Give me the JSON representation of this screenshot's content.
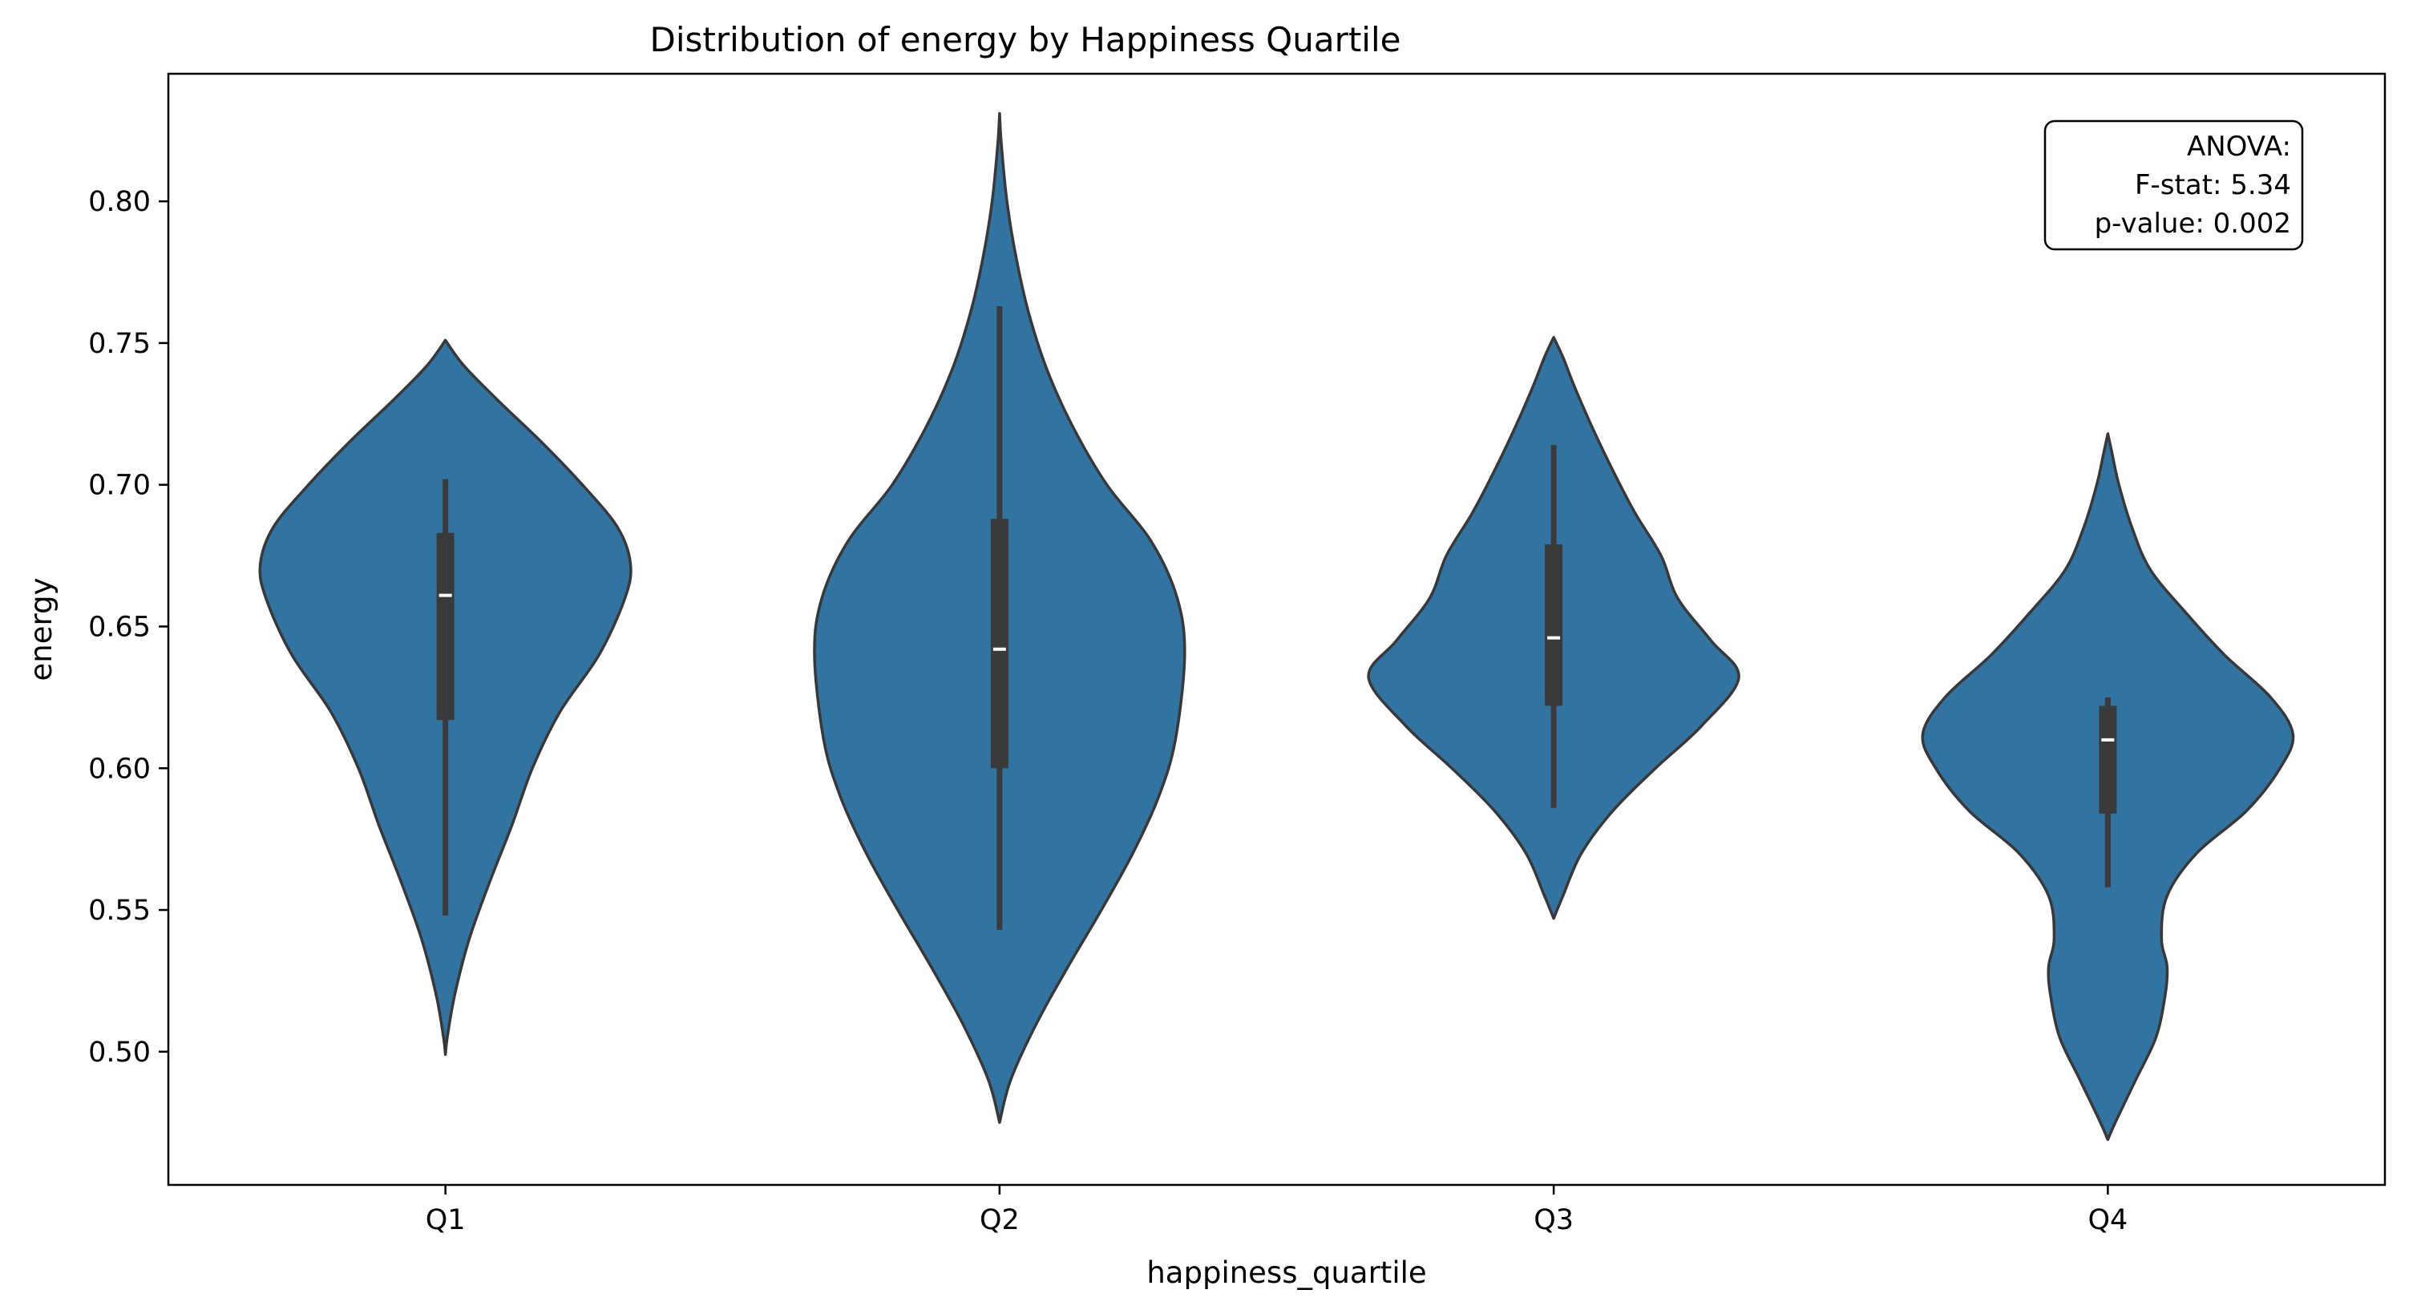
{
  "chart_data": {
    "type": "violin",
    "title": "Distribution of energy by Happiness Quartile",
    "xlabel": "happiness_quartile",
    "ylabel": "energy",
    "categories": [
      "Q1",
      "Q2",
      "Q3",
      "Q4"
    ],
    "ylim": [
      0.453,
      0.845
    ],
    "yticks": [
      0.5,
      0.55,
      0.6,
      0.65,
      0.7,
      0.75,
      0.8
    ],
    "ytick_labels": [
      "0.50",
      "0.55",
      "0.60",
      "0.65",
      "0.70",
      "0.75",
      "0.80"
    ],
    "grid": false,
    "colors": {
      "violin_fill": "#3274a1",
      "violin_edge": "#383838",
      "box": "#3a3a3a",
      "median": "#ffffff"
    },
    "violins": [
      {
        "category": "Q1",
        "min": 0.499,
        "max": 0.751,
        "box": {
          "q1": 0.617,
          "median": 0.661,
          "q3": 0.683,
          "whisker_low": 0.548,
          "whisker_high": 0.702
        },
        "density": [
          [
            0.499,
            0.0
          ],
          [
            0.505,
            0.01
          ],
          [
            0.52,
            0.05
          ],
          [
            0.54,
            0.13
          ],
          [
            0.56,
            0.24
          ],
          [
            0.58,
            0.36
          ],
          [
            0.6,
            0.47
          ],
          [
            0.62,
            0.62
          ],
          [
            0.64,
            0.83
          ],
          [
            0.66,
            0.97
          ],
          [
            0.672,
            1.0
          ],
          [
            0.685,
            0.93
          ],
          [
            0.7,
            0.74
          ],
          [
            0.715,
            0.52
          ],
          [
            0.73,
            0.28
          ],
          [
            0.742,
            0.1
          ],
          [
            0.751,
            0.0
          ]
        ]
      },
      {
        "category": "Q2",
        "min": 0.475,
        "max": 0.831,
        "box": {
          "q1": 0.6,
          "median": 0.642,
          "q3": 0.688,
          "whisker_low": 0.543,
          "whisker_high": 0.763
        },
        "density": [
          [
            0.475,
            0.0
          ],
          [
            0.49,
            0.06
          ],
          [
            0.51,
            0.2
          ],
          [
            0.53,
            0.37
          ],
          [
            0.55,
            0.55
          ],
          [
            0.57,
            0.72
          ],
          [
            0.59,
            0.86
          ],
          [
            0.61,
            0.95
          ],
          [
            0.64,
            1.0
          ],
          [
            0.66,
            0.96
          ],
          [
            0.68,
            0.82
          ],
          [
            0.7,
            0.58
          ],
          [
            0.72,
            0.4
          ],
          [
            0.74,
            0.26
          ],
          [
            0.76,
            0.16
          ],
          [
            0.78,
            0.09
          ],
          [
            0.8,
            0.04
          ],
          [
            0.82,
            0.01
          ],
          [
            0.831,
            0.0
          ]
        ]
      },
      {
        "category": "Q3",
        "min": 0.547,
        "max": 0.752,
        "box": {
          "q1": 0.622,
          "median": 0.646,
          "q3": 0.679,
          "whisker_low": 0.586,
          "whisker_high": 0.714
        },
        "density": [
          [
            0.547,
            0.0
          ],
          [
            0.555,
            0.05
          ],
          [
            0.57,
            0.15
          ],
          [
            0.585,
            0.32
          ],
          [
            0.6,
            0.55
          ],
          [
            0.615,
            0.8
          ],
          [
            0.632,
            1.0
          ],
          [
            0.645,
            0.85
          ],
          [
            0.66,
            0.67
          ],
          [
            0.675,
            0.58
          ],
          [
            0.69,
            0.44
          ],
          [
            0.705,
            0.32
          ],
          [
            0.72,
            0.21
          ],
          [
            0.735,
            0.11
          ],
          [
            0.745,
            0.05
          ],
          [
            0.752,
            0.0
          ]
        ]
      },
      {
        "category": "Q4",
        "min": 0.469,
        "max": 0.718,
        "box": {
          "q1": 0.584,
          "median": 0.61,
          "q3": 0.622,
          "whisker_low": 0.558,
          "whisker_high": 0.625
        },
        "density": [
          [
            0.469,
            0.0
          ],
          [
            0.475,
            0.04
          ],
          [
            0.49,
            0.15
          ],
          [
            0.505,
            0.26
          ],
          [
            0.52,
            0.31
          ],
          [
            0.53,
            0.32
          ],
          [
            0.54,
            0.29
          ],
          [
            0.555,
            0.32
          ],
          [
            0.57,
            0.48
          ],
          [
            0.585,
            0.75
          ],
          [
            0.6,
            0.93
          ],
          [
            0.612,
            1.0
          ],
          [
            0.625,
            0.88
          ],
          [
            0.64,
            0.63
          ],
          [
            0.655,
            0.42
          ],
          [
            0.67,
            0.23
          ],
          [
            0.685,
            0.13
          ],
          [
            0.7,
            0.06
          ],
          [
            0.712,
            0.02
          ],
          [
            0.718,
            0.0
          ]
        ]
      }
    ],
    "annotation": {
      "lines": [
        "ANOVA:",
        "F-stat: 5.34",
        "p-value: 0.002"
      ],
      "placement": "top-right"
    }
  }
}
